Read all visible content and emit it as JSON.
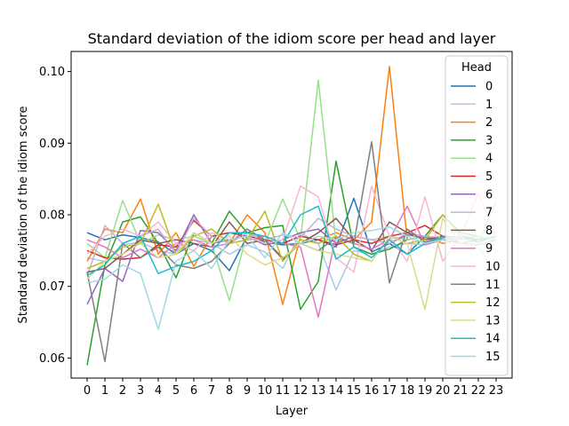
{
  "chart_data": {
    "type": "line",
    "title": "Standard deviation of the idiom score per head and layer",
    "xlabel": "Layer",
    "ylabel": "Standard deviation of the idiom score",
    "x": [
      0,
      1,
      2,
      3,
      4,
      5,
      6,
      7,
      8,
      9,
      10,
      11,
      12,
      13,
      14,
      15,
      16,
      17,
      18,
      19,
      20,
      21,
      22,
      23
    ],
    "xlim": [
      -0.9,
      23.9
    ],
    "ylim": [
      0.0572,
      0.1028
    ],
    "yticks": [
      0.06,
      0.07,
      0.08,
      0.09,
      0.1
    ],
    "ytick_labels": [
      "0.06",
      "0.07",
      "0.08",
      "0.09",
      "0.10"
    ],
    "xtick_labels": [
      "0",
      "1",
      "2",
      "3",
      "4",
      "5",
      "6",
      "7",
      "8",
      "9",
      "10",
      "11",
      "12",
      "13",
      "14",
      "15",
      "16",
      "17",
      "18",
      "19",
      "20",
      "21",
      "22",
      "23"
    ],
    "grid": false,
    "legend": {
      "title": "Head",
      "placement": "top-right"
    },
    "series": [
      {
        "name": "0",
        "color": "#1f77b4",
        "values": [
          0.0775,
          0.0765,
          0.0772,
          0.0768,
          0.0762,
          0.0745,
          0.076,
          0.075,
          0.0722,
          0.077,
          0.0762,
          0.0758,
          0.076,
          0.0765,
          0.0755,
          0.0823,
          0.0748,
          0.076,
          0.0745,
          0.077,
          0.0765,
          0.0768,
          0.0762,
          0.077
        ]
      },
      {
        "name": "1",
        "color": "#aec7e8",
        "values": [
          0.074,
          0.0735,
          0.0758,
          0.0762,
          0.075,
          0.0745,
          0.0765,
          0.076,
          0.0745,
          0.0758,
          0.0748,
          0.0725,
          0.0775,
          0.076,
          0.0695,
          0.075,
          0.0745,
          0.0755,
          0.076,
          0.0758,
          0.0765,
          0.077,
          0.0768,
          0.0765
        ]
      },
      {
        "name": "2",
        "color": "#ff7f0e",
        "values": [
          0.0735,
          0.078,
          0.0775,
          0.0822,
          0.0745,
          0.0775,
          0.0728,
          0.077,
          0.076,
          0.08,
          0.0775,
          0.0675,
          0.077,
          0.0765,
          0.0775,
          0.0765,
          0.079,
          0.1007,
          0.0765,
          0.077,
          0.076,
          0.0765,
          0.077,
          0.0765
        ]
      },
      {
        "name": "3",
        "color": "#2ca02c",
        "values": [
          0.059,
          0.073,
          0.079,
          0.0797,
          0.076,
          0.0712,
          0.0775,
          0.076,
          0.0805,
          0.0775,
          0.0782,
          0.0785,
          0.0668,
          0.0707,
          0.0875,
          0.0755,
          0.0745,
          0.0752,
          0.0765,
          0.077,
          0.08,
          0.0775,
          0.077,
          0.0765
        ]
      },
      {
        "name": "4",
        "color": "#98df8a",
        "values": [
          0.076,
          0.074,
          0.082,
          0.076,
          0.0772,
          0.0765,
          0.077,
          0.076,
          0.068,
          0.0775,
          0.076,
          0.0822,
          0.0765,
          0.0988,
          0.076,
          0.077,
          0.0765,
          0.077,
          0.0765,
          0.077,
          0.0765,
          0.077,
          0.076,
          0.082
        ]
      },
      {
        "name": "5",
        "color": "#d62728",
        "values": [
          0.075,
          0.074,
          0.0738,
          0.074,
          0.0758,
          0.0755,
          0.0792,
          0.077,
          0.0775,
          0.077,
          0.0765,
          0.076,
          0.077,
          0.0765,
          0.0758,
          0.0765,
          0.076,
          0.077,
          0.0775,
          0.0785,
          0.077,
          0.0768,
          0.0765,
          0.077
        ]
      },
      {
        "name": "6",
        "color": "#9467bd",
        "values": [
          0.0675,
          0.0725,
          0.0707,
          0.0778,
          0.0775,
          0.075,
          0.08,
          0.076,
          0.0765,
          0.077,
          0.0758,
          0.0765,
          0.0775,
          0.078,
          0.076,
          0.077,
          0.0765,
          0.076,
          0.0772,
          0.0768,
          0.0765,
          0.077,
          0.0768,
          0.0765
        ]
      },
      {
        "name": "7",
        "color": "#c5b0d5",
        "values": [
          0.0715,
          0.0785,
          0.076,
          0.077,
          0.078,
          0.0745,
          0.0795,
          0.077,
          0.076,
          0.0775,
          0.0765,
          0.0772,
          0.0768,
          0.0795,
          0.078,
          0.077,
          0.0765,
          0.076,
          0.0775,
          0.077,
          0.0768,
          0.0765,
          0.077,
          0.0765
        ]
      },
      {
        "name": "8",
        "color": "#8c564b",
        "values": [
          0.072,
          0.0725,
          0.0745,
          0.0765,
          0.076,
          0.0765,
          0.076,
          0.0755,
          0.079,
          0.076,
          0.0765,
          0.0738,
          0.076,
          0.0775,
          0.0795,
          0.0765,
          0.075,
          0.079,
          0.0775,
          0.0765,
          0.077,
          0.0768,
          0.0765,
          0.077
        ]
      },
      {
        "name": "9",
        "color": "#e377c2",
        "values": [
          0.0765,
          0.0755,
          0.074,
          0.0752,
          0.074,
          0.076,
          0.0765,
          0.0755,
          0.076,
          0.0765,
          0.077,
          0.076,
          0.0755,
          0.0657,
          0.077,
          0.076,
          0.0752,
          0.0765,
          0.0812,
          0.0758,
          0.0765,
          0.076,
          0.0758,
          0.0765
        ]
      },
      {
        "name": "10",
        "color": "#f7b6d2",
        "values": [
          0.0745,
          0.077,
          0.078,
          0.077,
          0.079,
          0.076,
          0.075,
          0.0775,
          0.0765,
          0.077,
          0.076,
          0.0765,
          0.084,
          0.0825,
          0.074,
          0.072,
          0.084,
          0.077,
          0.0735,
          0.0825,
          0.0735,
          0.077,
          0.083,
          0.077
        ]
      },
      {
        "name": "11",
        "color": "#7f7f7f",
        "values": [
          0.072,
          0.0595,
          0.076,
          0.074,
          0.0755,
          0.073,
          0.0725,
          0.0735,
          0.076,
          0.078,
          0.0765,
          0.074,
          0.076,
          0.075,
          0.0768,
          0.076,
          0.0902,
          0.0705,
          0.078,
          0.0762,
          0.077,
          0.076,
          0.0765,
          0.077
        ]
      },
      {
        "name": "12",
        "color": "#bcbd22",
        "values": [
          0.0725,
          0.0735,
          0.0755,
          0.076,
          0.0815,
          0.0745,
          0.077,
          0.078,
          0.076,
          0.0765,
          0.0805,
          0.0735,
          0.0765,
          0.076,
          0.077,
          0.0745,
          0.0735,
          0.077,
          0.076,
          0.0765,
          0.08,
          0.077,
          0.0768,
          0.0765
        ]
      },
      {
        "name": "13",
        "color": "#dbdb8d",
        "values": [
          0.071,
          0.0735,
          0.0745,
          0.076,
          0.074,
          0.0745,
          0.0775,
          0.076,
          0.077,
          0.0745,
          0.073,
          0.074,
          0.076,
          0.075,
          0.0745,
          0.074,
          0.0735,
          0.077,
          0.076,
          0.0668,
          0.0795,
          0.076,
          0.077,
          0.0765
        ]
      },
      {
        "name": "14",
        "color": "#17becf",
        "values": [
          0.0715,
          0.073,
          0.076,
          0.077,
          0.0718,
          0.0728,
          0.0735,
          0.075,
          0.0775,
          0.0775,
          0.077,
          0.076,
          0.08,
          0.0812,
          0.0738,
          0.0755,
          0.074,
          0.0765,
          0.0745,
          0.076,
          0.0768,
          0.077,
          0.0765,
          0.077
        ]
      },
      {
        "name": "15",
        "color": "#9edae5",
        "values": [
          0.0705,
          0.071,
          0.073,
          0.0718,
          0.064,
          0.0735,
          0.075,
          0.0725,
          0.0765,
          0.077,
          0.074,
          0.0775,
          0.076,
          0.077,
          0.0765,
          0.0775,
          0.0778,
          0.0783,
          0.077,
          0.076,
          0.0765,
          0.077,
          0.0755,
          0.072
        ]
      }
    ]
  }
}
